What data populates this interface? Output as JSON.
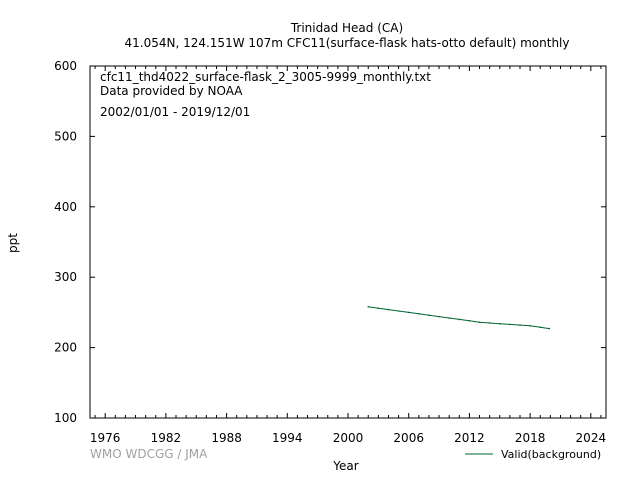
{
  "header": {
    "title": "Trinidad Head (CA)",
    "subtitle": "41.054N, 124.151W 107m    CFC11(surface-flask hats-otto default) monthly"
  },
  "annotations": {
    "file": "cfc11_thd4022_surface-flask_2_3005-9999_monthly.txt",
    "provider": "Data provided by NOAA",
    "period": "2002/01/01 - 2019/12/01"
  },
  "credit": "WMO WDCGG / JMA",
  "colors": {
    "series": "#006633",
    "credit": "#a0a0a0",
    "axis": "#000000"
  },
  "chart_data": {
    "type": "line",
    "xlabel": "Year",
    "ylabel": "ppt",
    "xlim": [
      1974.5,
      2025.5
    ],
    "ylim": [
      100,
      600
    ],
    "x_ticks": [
      1976,
      1982,
      1988,
      1994,
      2000,
      2006,
      2012,
      2018,
      2024
    ],
    "y_ticks": [
      100,
      200,
      300,
      400,
      500,
      600
    ],
    "legend_position": "bottom-right",
    "grid": false,
    "series": [
      {
        "name": "Valid(background)",
        "x": [
          2002.0,
          2003.0,
          2004.0,
          2005.0,
          2006.0,
          2007.0,
          2008.0,
          2009.0,
          2010.0,
          2011.0,
          2012.0,
          2013.0,
          2014.0,
          2015.0,
          2016.0,
          2017.0,
          2018.0,
          2019.0,
          2019.9
        ],
        "values": [
          258,
          256,
          254,
          252,
          250,
          248,
          246,
          244,
          242,
          240,
          238,
          236,
          235,
          234,
          233,
          232,
          231,
          229,
          227
        ]
      }
    ]
  }
}
